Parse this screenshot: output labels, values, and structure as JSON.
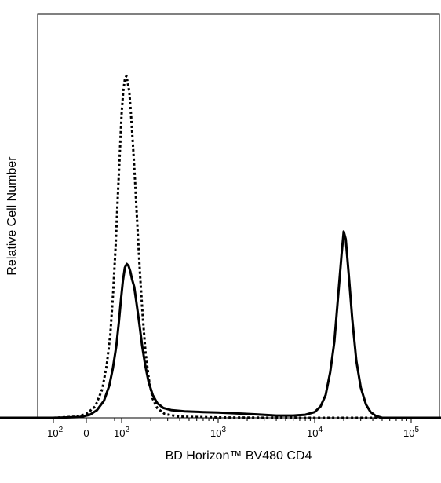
{
  "chart_data": {
    "type": "line",
    "title": "",
    "xlabel": "BD Horizon™ BV480 CD4",
    "ylabel": "Relative Cell Number",
    "x_scale": "biexponential",
    "xlim": [
      -300,
      250000
    ],
    "ylim": [
      0,
      1.0
    ],
    "grid": false,
    "legend": "none",
    "x_ticks": [
      {
        "value": -100,
        "label": "-10",
        "exp": "2"
      },
      {
        "value": 0,
        "label": "0",
        "exp": ""
      },
      {
        "value": 100,
        "label": "10",
        "exp": "2"
      },
      {
        "value": 1000,
        "label": "10",
        "exp": "3"
      },
      {
        "value": 10000,
        "label": "10",
        "exp": "4"
      },
      {
        "value": 100000,
        "label": "10",
        "exp": "5"
      }
    ],
    "x_minor_ticks": [
      -200,
      -300,
      50,
      80,
      200,
      300,
      400,
      500,
      600,
      700,
      800,
      900,
      2000,
      3000,
      4000,
      5000,
      6000,
      7000,
      8000,
      9000,
      20000,
      30000,
      40000,
      50000,
      60000,
      70000,
      80000,
      90000,
      200000
    ],
    "series": [
      {
        "style": "solid",
        "color": "#000000",
        "points": [
          [
            -300,
            0.0
          ],
          [
            -100,
            0.0
          ],
          [
            -20,
            0.002
          ],
          [
            10,
            0.008
          ],
          [
            30,
            0.02
          ],
          [
            50,
            0.045
          ],
          [
            65,
            0.085
          ],
          [
            75,
            0.13
          ],
          [
            85,
            0.19
          ],
          [
            92,
            0.25
          ],
          [
            98,
            0.31
          ],
          [
            103,
            0.36
          ],
          [
            108,
            0.395
          ],
          [
            113,
            0.405
          ],
          [
            118,
            0.4
          ],
          [
            123,
            0.385
          ],
          [
            128,
            0.365
          ],
          [
            135,
            0.345
          ],
          [
            143,
            0.3
          ],
          [
            152,
            0.25
          ],
          [
            163,
            0.19
          ],
          [
            175,
            0.14
          ],
          [
            190,
            0.095
          ],
          [
            210,
            0.06
          ],
          [
            235,
            0.038
          ],
          [
            270,
            0.026
          ],
          [
            330,
            0.02
          ],
          [
            450,
            0.017
          ],
          [
            700,
            0.015
          ],
          [
            1000,
            0.014
          ],
          [
            1500,
            0.012
          ],
          [
            2500,
            0.009
          ],
          [
            4000,
            0.006
          ],
          [
            6000,
            0.006
          ],
          [
            8000,
            0.008
          ],
          [
            10000,
            0.015
          ],
          [
            11500,
            0.03
          ],
          [
            13000,
            0.06
          ],
          [
            14500,
            0.12
          ],
          [
            16000,
            0.2
          ],
          [
            17500,
            0.32
          ],
          [
            19000,
            0.43
          ],
          [
            20000,
            0.49
          ],
          [
            21000,
            0.47
          ],
          [
            22500,
            0.38
          ],
          [
            24500,
            0.26
          ],
          [
            27000,
            0.15
          ],
          [
            30000,
            0.08
          ],
          [
            34000,
            0.035
          ],
          [
            38000,
            0.015
          ],
          [
            43000,
            0.005
          ],
          [
            50000,
            0.0
          ],
          [
            250000,
            0.0
          ]
        ]
      },
      {
        "style": "dotted",
        "color": "#000000",
        "points": [
          [
            -300,
            0.0
          ],
          [
            -100,
            0.0
          ],
          [
            -30,
            0.003
          ],
          [
            0,
            0.01
          ],
          [
            25,
            0.03
          ],
          [
            45,
            0.075
          ],
          [
            58,
            0.14
          ],
          [
            68,
            0.22
          ],
          [
            76,
            0.33
          ],
          [
            83,
            0.45
          ],
          [
            89,
            0.58
          ],
          [
            95,
            0.7
          ],
          [
            100,
            0.8
          ],
          [
            104,
            0.86
          ],
          [
            108,
            0.89
          ],
          [
            112,
            0.9
          ],
          [
            116,
            0.88
          ],
          [
            120,
            0.86
          ],
          [
            125,
            0.8
          ],
          [
            131,
            0.72
          ],
          [
            138,
            0.62
          ],
          [
            146,
            0.5
          ],
          [
            155,
            0.38
          ],
          [
            165,
            0.27
          ],
          [
            177,
            0.17
          ],
          [
            192,
            0.1
          ],
          [
            210,
            0.05
          ],
          [
            235,
            0.025
          ],
          [
            280,
            0.01
          ],
          [
            400,
            0.003
          ],
          [
            1000,
            0.001
          ],
          [
            5000,
            0.0
          ],
          [
            250000,
            0.0
          ]
        ]
      }
    ]
  }
}
